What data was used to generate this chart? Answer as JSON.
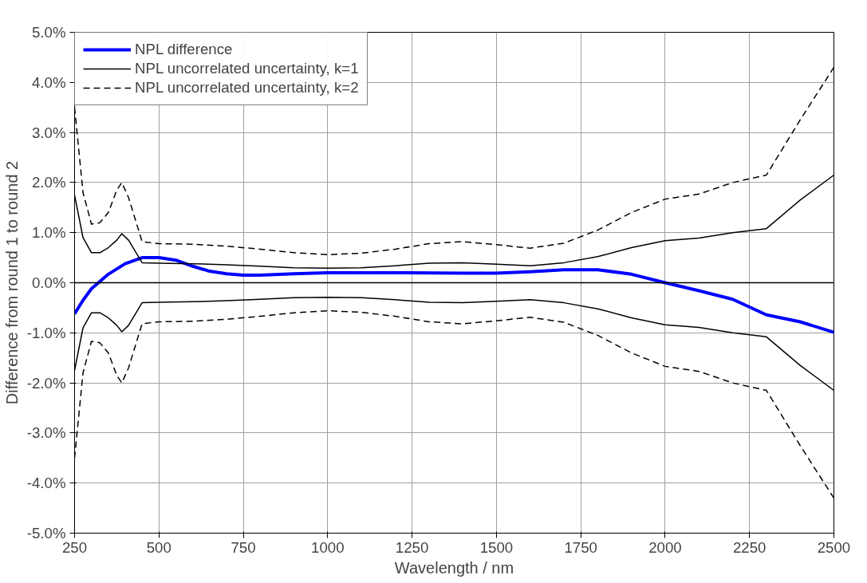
{
  "chart_data": {
    "type": "line",
    "xlabel": "Wavelength / nm",
    "ylabel": "Difference from round 1 to round 2",
    "xlim": [
      250,
      2500
    ],
    "xticks": [
      250,
      500,
      750,
      1000,
      1250,
      1500,
      1750,
      2000,
      2250,
      2500
    ],
    "ylim": [
      -5,
      5
    ],
    "yticks": [
      {
        "value": -5,
        "label": "-5.0%"
      },
      {
        "value": -4,
        "label": "-4.0%"
      },
      {
        "value": -3,
        "label": "-3.0%"
      },
      {
        "value": -2,
        "label": "-2.0%"
      },
      {
        "value": -1,
        "label": "-1.0%"
      },
      {
        "value": 0,
        "label": "0.0%"
      },
      {
        "value": 1,
        "label": "1.0%"
      },
      {
        "value": 2,
        "label": "2.0%"
      },
      {
        "value": 3,
        "label": "3.0%"
      },
      {
        "value": 4,
        "label": "4.0%"
      },
      {
        "value": 5,
        "label": "5.0%"
      }
    ],
    "grid": true,
    "legend": "top left",
    "marker": "none",
    "ref_lines": [
      {
        "axis": "y",
        "value": 0,
        "color": "#000000"
      }
    ],
    "series": [
      {
        "name": "NPL difference",
        "color": "#0000ff",
        "line_style": "solid",
        "x": [
          250,
          275,
          300,
          350,
          400,
          450,
          500,
          550,
          600,
          650,
          700,
          750,
          800,
          900,
          1000,
          1200,
          1400,
          1500,
          1600,
          1700,
          1800,
          1900,
          2000,
          2100,
          2200,
          2300,
          2400,
          2500
        ],
        "values": [
          -0.62,
          -0.35,
          -0.12,
          0.17,
          0.38,
          0.5,
          0.5,
          0.45,
          0.33,
          0.23,
          0.18,
          0.15,
          0.15,
          0.18,
          0.2,
          0.2,
          0.19,
          0.19,
          0.22,
          0.26,
          0.26,
          0.17,
          0.0,
          -0.16,
          -0.33,
          -0.64,
          -0.78,
          -0.99
        ]
      },
      {
        "name": "NPL uncorrelated uncertainty, k=1",
        "color": "#000000",
        "line_style": "solid",
        "x": [
          250,
          275,
          300,
          325,
          350,
          375,
          390,
          410,
          450,
          500,
          600,
          700,
          800,
          900,
          1000,
          1100,
          1200,
          1300,
          1400,
          1500,
          1600,
          1700,
          1800,
          1900,
          2000,
          2100,
          2200,
          2300,
          2400,
          2500
        ],
        "values": [
          1.75,
          0.9,
          0.6,
          0.6,
          0.7,
          0.85,
          0.98,
          0.85,
          0.4,
          0.39,
          0.38,
          0.36,
          0.33,
          0.3,
          0.29,
          0.3,
          0.34,
          0.39,
          0.4,
          0.37,
          0.34,
          0.4,
          0.52,
          0.7,
          0.84,
          0.89,
          1.0,
          1.08,
          1.65,
          2.15
        ]
      },
      {
        "name": "NPL uncorrelated uncertainty, k=2",
        "color": "#000000",
        "line_style": "dashed",
        "x": [
          250,
          275,
          300,
          325,
          350,
          375,
          390,
          410,
          450,
          500,
          600,
          700,
          800,
          900,
          1000,
          1100,
          1200,
          1300,
          1400,
          1500,
          1600,
          1700,
          1800,
          1900,
          2000,
          2100,
          2200,
          2300,
          2400,
          2500
        ],
        "values": [
          3.5,
          1.8,
          1.17,
          1.2,
          1.4,
          1.85,
          2.0,
          1.7,
          0.82,
          0.78,
          0.77,
          0.73,
          0.67,
          0.6,
          0.56,
          0.59,
          0.67,
          0.78,
          0.82,
          0.76,
          0.69,
          0.79,
          1.05,
          1.4,
          1.67,
          1.77,
          2.0,
          2.15,
          3.25,
          4.3
        ]
      },
      {
        "color": "#000000",
        "line_style": "solid",
        "x": [
          250,
          275,
          300,
          325,
          350,
          375,
          390,
          410,
          450,
          500,
          600,
          700,
          800,
          900,
          1000,
          1100,
          1200,
          1300,
          1400,
          1500,
          1600,
          1700,
          1800,
          1900,
          2000,
          2100,
          2200,
          2300,
          2400,
          2500
        ],
        "values": [
          -1.75,
          -0.9,
          -0.6,
          -0.6,
          -0.7,
          -0.85,
          -0.98,
          -0.85,
          -0.4,
          -0.39,
          -0.38,
          -0.36,
          -0.33,
          -0.3,
          -0.29,
          -0.3,
          -0.34,
          -0.39,
          -0.4,
          -0.37,
          -0.34,
          -0.4,
          -0.52,
          -0.7,
          -0.84,
          -0.89,
          -1.0,
          -1.08,
          -1.65,
          -2.15
        ]
      },
      {
        "color": "#000000",
        "line_style": "dashed",
        "x": [
          250,
          275,
          300,
          325,
          350,
          375,
          390,
          410,
          450,
          500,
          600,
          700,
          800,
          900,
          1000,
          1100,
          1200,
          1300,
          1400,
          1500,
          1600,
          1700,
          1800,
          1900,
          2000,
          2100,
          2200,
          2300,
          2400,
          2500
        ],
        "values": [
          -3.5,
          -1.8,
          -1.17,
          -1.2,
          -1.4,
          -1.85,
          -2.0,
          -1.7,
          -0.82,
          -0.78,
          -0.77,
          -0.73,
          -0.67,
          -0.6,
          -0.56,
          -0.59,
          -0.67,
          -0.78,
          -0.82,
          -0.76,
          -0.69,
          -0.79,
          -1.05,
          -1.4,
          -1.67,
          -1.77,
          -2.0,
          -2.15,
          -3.25,
          -4.3
        ]
      }
    ]
  }
}
